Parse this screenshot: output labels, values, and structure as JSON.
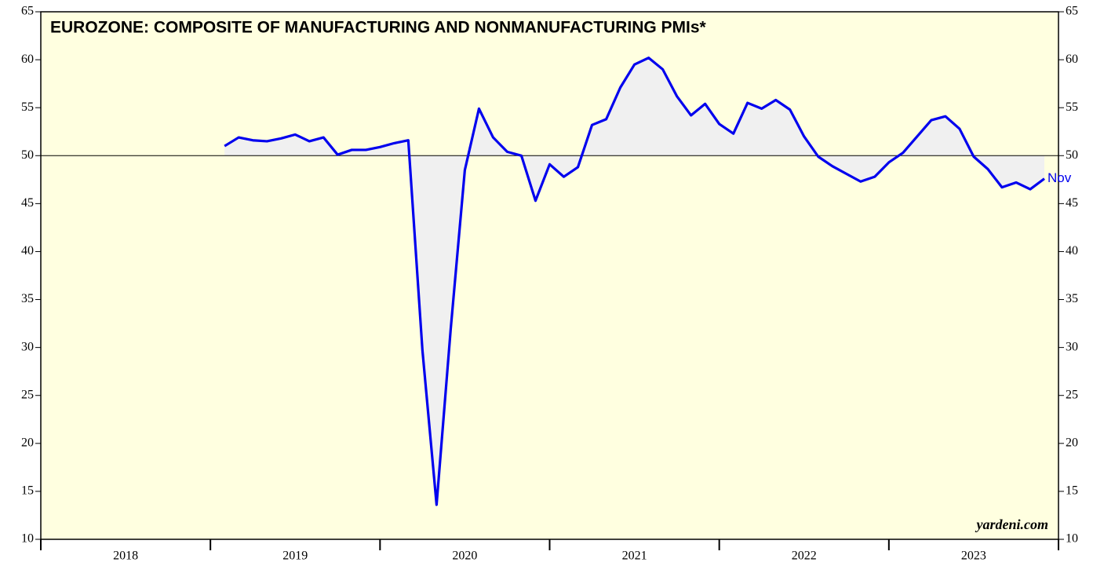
{
  "chart_data": {
    "type": "line",
    "title": "EUROZONE: COMPOSITE OF MANUFACTURING AND NONMANUFACTURING PMIs*",
    "source": "yardeni.com",
    "annotation": "Nov",
    "x": [
      "2019-01",
      "2019-02",
      "2019-03",
      "2019-04",
      "2019-05",
      "2019-06",
      "2019-07",
      "2019-08",
      "2019-09",
      "2019-10",
      "2019-11",
      "2019-12",
      "2020-01",
      "2020-02",
      "2020-03",
      "2020-04",
      "2020-05",
      "2020-06",
      "2020-07",
      "2020-08",
      "2020-09",
      "2020-10",
      "2020-11",
      "2020-12",
      "2021-01",
      "2021-02",
      "2021-03",
      "2021-04",
      "2021-05",
      "2021-06",
      "2021-07",
      "2021-08",
      "2021-09",
      "2021-10",
      "2021-11",
      "2021-12",
      "2022-01",
      "2022-02",
      "2022-03",
      "2022-04",
      "2022-05",
      "2022-06",
      "2022-07",
      "2022-08",
      "2022-09",
      "2022-10",
      "2022-11",
      "2022-12",
      "2023-01",
      "2023-02",
      "2023-03",
      "2023-04",
      "2023-05",
      "2023-06",
      "2023-07",
      "2023-08",
      "2023-09",
      "2023-10",
      "2023-11"
    ],
    "series": [
      {
        "name": "Composite PMI",
        "color": "#0000ee",
        "values": [
          51.0,
          51.9,
          51.6,
          51.5,
          51.8,
          52.2,
          51.5,
          51.9,
          50.1,
          50.6,
          50.6,
          50.9,
          51.3,
          51.6,
          29.7,
          13.6,
          31.9,
          48.5,
          54.9,
          51.9,
          50.4,
          50.0,
          45.3,
          49.1,
          47.8,
          48.8,
          53.2,
          53.8,
          57.1,
          59.5,
          60.2,
          59.0,
          56.2,
          54.2,
          55.4,
          53.3,
          52.3,
          55.5,
          54.9,
          55.8,
          54.8,
          52.0,
          49.9,
          48.9,
          48.1,
          47.3,
          47.8,
          49.3,
          50.3,
          52.0,
          53.7,
          54.1,
          52.8,
          49.9,
          48.6,
          46.7,
          47.2,
          46.5,
          47.6
        ]
      }
    ],
    "reference_line": 50,
    "xlim": [
      2018,
      2024
    ],
    "xticks": [
      2018,
      2019,
      2020,
      2021,
      2022,
      2023
    ],
    "ylim": [
      10,
      65
    ],
    "yticks": [
      10,
      15,
      20,
      25,
      30,
      35,
      40,
      45,
      50,
      55,
      60,
      65
    ],
    "background": "#ffffe0",
    "fill_color": "#f0f0f0"
  }
}
